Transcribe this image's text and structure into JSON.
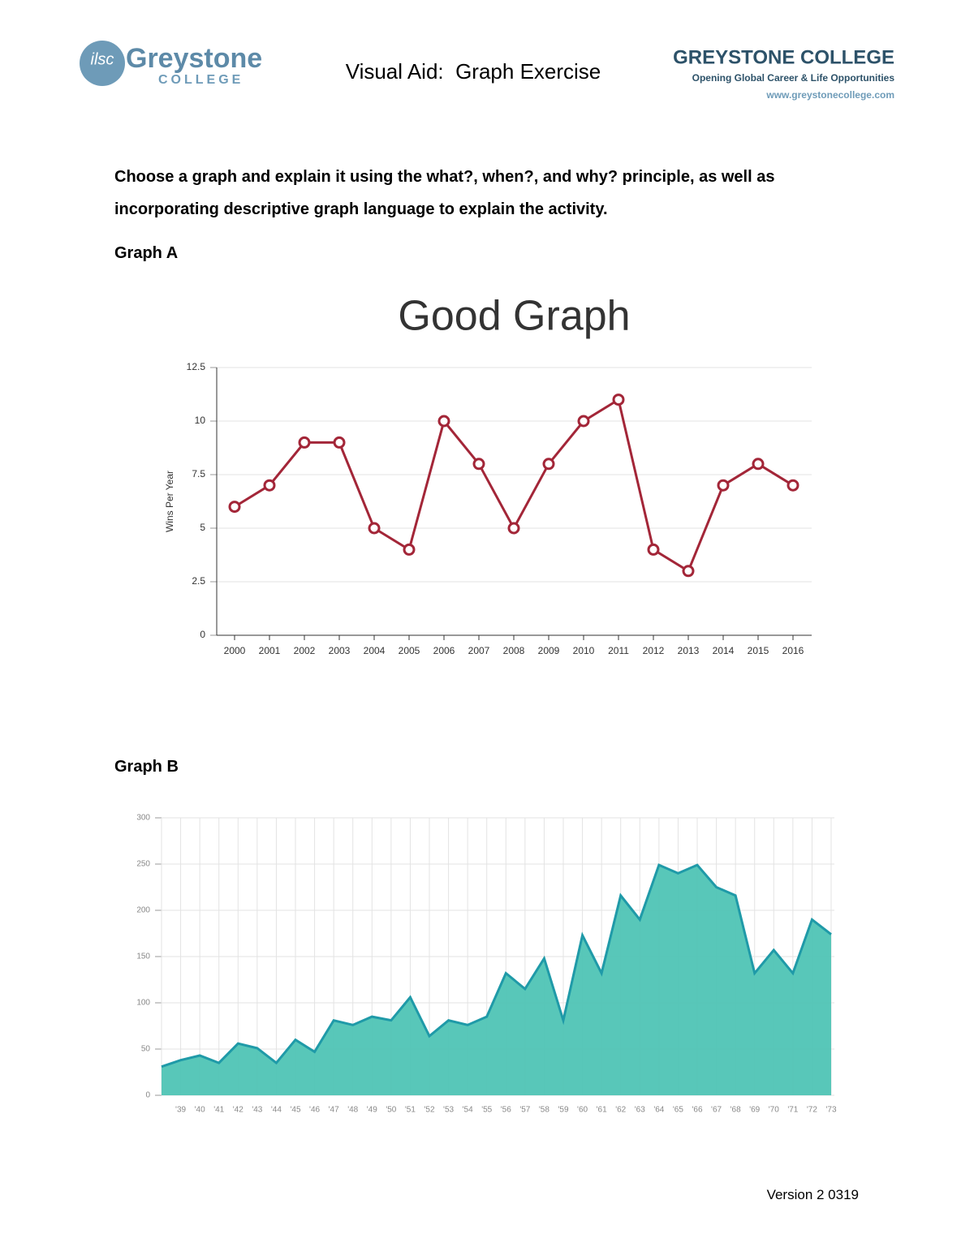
{
  "header": {
    "logo_badge": "ilsc",
    "logo_main": "Greystone",
    "logo_sub": "COLLEGE",
    "title": "Visual Aid:  Graph Exercise",
    "right_title": "GREYSTONE COLLEGE",
    "tagline": "Opening Global Career & Life Opportunities",
    "url": "www.greystonecollege.com"
  },
  "instructions": "Choose a graph and explain it using the what?, when?, and why? principle, as well as incorporating descriptive graph language to explain the activity.",
  "graph_a_label": "Graph A",
  "graph_b_label": "Graph B",
  "footer": "Version 2 0319",
  "chart_data": [
    {
      "type": "line",
      "title": "Good Graph",
      "y_label": "Wins Per Year",
      "categories": [
        "2000",
        "2001",
        "2002",
        "2003",
        "2004",
        "2005",
        "2006",
        "2007",
        "2008",
        "2009",
        "2010",
        "2011",
        "2012",
        "2013",
        "2014",
        "2015",
        "2016"
      ],
      "values": [
        6,
        7,
        9,
        9,
        5,
        4,
        10,
        8,
        5,
        8,
        10,
        11,
        4,
        3,
        7,
        8,
        7
      ],
      "color": "#a32638",
      "ylim": [
        0,
        12.5
      ],
      "yticks": [
        0,
        2.5,
        5,
        7.5,
        10,
        12.5
      ],
      "grid": true
    },
    {
      "type": "area",
      "categories": [
        null,
        "'39",
        "'40",
        "'41",
        "'42",
        "'43",
        "'44",
        "'45",
        "'46",
        "'47",
        "'48",
        "'49",
        "'50",
        "'51",
        "'52",
        "'53",
        "'54",
        "'55",
        "'56",
        "'57",
        "'58",
        "'59",
        "'60",
        "'61",
        "'62",
        "'63",
        "'64",
        "'65",
        "'66",
        "'67",
        "'68",
        "'69",
        "'70",
        "'71",
        "'72",
        "'73"
      ],
      "values": [
        31,
        38,
        43,
        35,
        56,
        51,
        35,
        60,
        47,
        81,
        76,
        85,
        81,
        106,
        64,
        81,
        76,
        85,
        132,
        115,
        148,
        81,
        173,
        132,
        216,
        190,
        249,
        240,
        249,
        225,
        216,
        132,
        157,
        132,
        190,
        174
      ],
      "color": "#4fc4b5",
      "line_color": "#1f9aa8",
      "ylim": [
        0,
        300
      ],
      "yticks": [
        0,
        50,
        100,
        150,
        200,
        250,
        300
      ],
      "grid": true
    }
  ]
}
